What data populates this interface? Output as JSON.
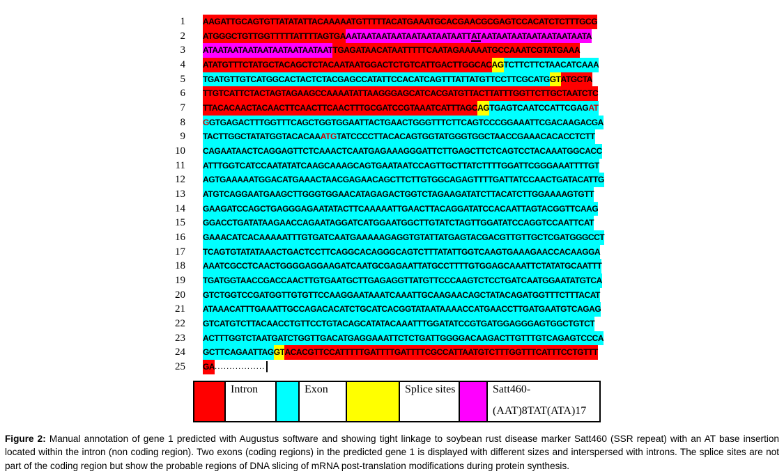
{
  "figure": {
    "colors": {
      "intron": "#FF0000",
      "exon": "#00FFFF",
      "splice": "#FFFF00",
      "ssr": "#FF00FF",
      "marker_letter": "#CC0000"
    },
    "rows": [
      {
        "num": "1",
        "segments": [
          {
            "t": "AAGATTGCAGTGTTATATATTACAAAAATGTTTTTACATGAAATGCACGAACGCGAGTCCACATCTCTTTGCG",
            "bg": "intron"
          }
        ]
      },
      {
        "num": "2",
        "segments": [
          {
            "t": "ATGGGCTGTTGGTTTTTATTTTAGTGA",
            "bg": "intron"
          },
          {
            "t": "AATAATAATAATAATAATAATAATT",
            "bg": "ssr"
          },
          {
            "t": "AT",
            "bg": "ssr",
            "u": true
          },
          {
            "t": "AATAATAATAATAATAATAATA",
            "bg": "ssr"
          }
        ]
      },
      {
        "num": "3",
        "segments": [
          {
            "t": "ATAATAATAATAATAATAATAATAAT",
            "bg": "ssr"
          },
          {
            "t": "TGAGATAACATAATTTTTCAATAGAAAAATGCCAAATCGTATGAAA",
            "bg": "intron"
          }
        ]
      },
      {
        "num": "4",
        "segments": [
          {
            "t": "ATATGTTTCTATGCTACAGCTCTACAATAATGGACTCTGTCATTGACTTGGCAC",
            "bg": "intron"
          },
          {
            "t": "AG",
            "bg": "splice"
          },
          {
            "t": "TCTTCTTCTAACATCAAA",
            "bg": "exon"
          }
        ]
      },
      {
        "num": "5",
        "segments": [
          {
            "t": "TGATGTTGTCATGGCACTACTCTACGAGCCATATTCCACATCAGTTTATTATGTTCCTTCGCATG",
            "bg": "exon"
          },
          {
            "t": "GT",
            "bg": "splice"
          },
          {
            "t": "ATGCTA",
            "bg": "intron"
          }
        ]
      },
      {
        "num": "6",
        "segments": [
          {
            "t": "TTGTCATTCTACTAGTAGAAGCCAAAATATTAAGGGAGCATCACGATGTTACTTATTTGGTTCTTGCTAATCTC",
            "bg": "intron"
          }
        ]
      },
      {
        "num": "7",
        "segments": [
          {
            "t": "TTACACAACTACAACTTCAACTTCAACTTTGCGATCCGTAAATCATTTAGC",
            "bg": "intron"
          },
          {
            "t": "AG",
            "bg": "splice"
          },
          {
            "t": "TGAGTCAATCCATTCGAG",
            "bg": "exon"
          },
          {
            "t": "AT",
            "bg": "exon",
            "fg": "marker"
          }
        ]
      },
      {
        "num": "8",
        "segments": [
          {
            "t": "G",
            "bg": "exon",
            "fg": "marker"
          },
          {
            "t": "GTGAGACTTTGGTTTCAGCTGGTGGAATTACTGAACTGGGTTTCTTCAGTCCCGGAAATTCGACAAGACGA",
            "bg": "exon"
          }
        ]
      },
      {
        "num": "9",
        "segments": [
          {
            "t": "TACTTGGCTATATGGTACACAA",
            "bg": "exon"
          },
          {
            "t": "ATG",
            "bg": "exon",
            "fg": "marker"
          },
          {
            "t": "TATCCCCTTACACAGTGGTATGGGTGGCTAACCGAAACACACCTCTT",
            "bg": "exon"
          }
        ]
      },
      {
        "num": "10",
        "segments": [
          {
            "t": "CAGAATAACTCAGGAGTTCTCAAACTCAATGAGAAAGGGATTCTTGAGCTTCTCAGTCCTACAAATGGCACC",
            "bg": "exon"
          }
        ]
      },
      {
        "num": "11",
        "segments": [
          {
            "t": "ATTTGGTCATCCAATATATCAAGCAAAGCAGTGAATAATCCAGTTGCTTATCTTTTGGATTCGGGAAATTTTGT",
            "bg": "exon"
          }
        ]
      },
      {
        "num": "12",
        "segments": [
          {
            "t": "AGTGAAAAATGGACATGAAACTAACGAGAACAGCTTCTTGTGGCAGAGTTTTGATTATCCAACTGATACATTG",
            "bg": "exon"
          }
        ]
      },
      {
        "num": "13",
        "segments": [
          {
            "t": "ATGTCAGGAATGAAGCTTGGGTGGAACATAGAGACTGGTCTAGAAGATATCTTACATCTTGGAAAAGTGTT",
            "bg": "exon"
          }
        ]
      },
      {
        "num": "14",
        "segments": [
          {
            "t": "GAAGATCCAGCTGAGGGAGAATATACTTCAAAAATTGAACTTACAGGATATCCACAATTAGTACGGTTCAAG",
            "bg": "exon"
          }
        ]
      },
      {
        "num": "15",
        "segments": [
          {
            "t": "GGACCTGATATAAGAACCAGAATAGGATCATGGAATGGCTTGTATCTAGTTGGATATCCAGGTCCAATTCAT",
            "bg": "exon"
          }
        ]
      },
      {
        "num": "16",
        "segments": [
          {
            "t": "GAAACATCACAAAAATTTGTGATCAATGAAAAAGAGGTGTATTATGAGTACGACGTTGTTGCTCGATGGGCCT",
            "bg": "exon"
          }
        ]
      },
      {
        "num": "17",
        "segments": [
          {
            "t": "TCAGTGTATATAAACTGACTCCTTCAGGCACAGGGCAGTCTTTATATTGGTCAAGTGAAAGAACCACAAGGA",
            "bg": "exon"
          }
        ]
      },
      {
        "num": "18",
        "segments": [
          {
            "t": "AAATCGCCTCAACTGGGGAGGAAGATCAATGCGAGAATTATGCCTTTTGTGGAGCAAATTCTATATGCAATTT",
            "bg": "exon"
          }
        ]
      },
      {
        "num": "19",
        "segments": [
          {
            "t": "TGATGGTAACCGACCAACTTGTGAATGCTTGAGAGGTTATGTTCCCAAGTCTCCTGATCAATGGAATATGTCA",
            "bg": "exon"
          }
        ]
      },
      {
        "num": "20",
        "segments": [
          {
            "t": "GTCTGGTCCGATGGTTGTGTTCCAAGGAATAAATCAAATTGCAAGAACAGCTATACAGATGGTTTCTTTACAT",
            "bg": "exon"
          }
        ]
      },
      {
        "num": "21",
        "segments": [
          {
            "t": "ATAAACATTTGAAATTGCCAGACACATCTGCATCACGGTATAATAAAACCATGAACCTTGATGAATGTCAGAG",
            "bg": "exon"
          }
        ]
      },
      {
        "num": "22",
        "segments": [
          {
            "t": "GTCATGTCTTACAACCTGTTCCTGTACAGCATATACAAATTTGGATATCCGTGATGGAGGGAGTGGCTGTCT",
            "bg": "exon"
          }
        ]
      },
      {
        "num": "23",
        "segments": [
          {
            "t": "ACTTTGGTCTAATGATCTGGTTGACATGAGGAAATTCTCTGATTGGGGACAAGACTTGTTTGTCAGAGTCCCA",
            "bg": "exon"
          }
        ]
      },
      {
        "num": "24",
        "segments": [
          {
            "t": "GCTTCAGAATTAG",
            "bg": "exon"
          },
          {
            "t": "GT",
            "bg": "splice"
          },
          {
            "t": "ACACGTTCCATTTTTGATTTTGATTTTCGCCATTAATGTCTTTGGTTTCATTTCCTGTTT",
            "bg": "intron"
          }
        ]
      },
      {
        "num": "25",
        "segments": [
          {
            "t": "GA",
            "bg": "intron"
          },
          {
            "t": ".................",
            "bg": "plain",
            "dots": true
          },
          {
            "cursor": true
          }
        ]
      }
    ],
    "legend": {
      "items": [
        {
          "key": "intron",
          "color": "#FF0000",
          "label": "Intron"
        },
        {
          "key": "exon",
          "color": "#00FFFF",
          "label": "Exon"
        },
        {
          "key": "splice",
          "color": "#FFFF00",
          "label": "Splice sites"
        },
        {
          "key": "ssr",
          "color": "#FF00FF",
          "label": "Satt460-",
          "label2": "(AAT)8TAT(ATA)17"
        }
      ]
    },
    "caption": {
      "prefix": "Figure 2:",
      "text": " Manual annotation of gene 1 predicted with Augustus software and showing tight linkage to soybean rust disease marker Satt460 (SSR repeat) with an AT base insertion located within the intron (non coding region). Two exons (coding regions) in the predicted gene 1 is displayed with  different sizes and interspersed with introns. The splice sites are not part of the coding region but show the probable regions of DNA slicing of mRNA post-translation modifications during protein synthesis."
    }
  }
}
